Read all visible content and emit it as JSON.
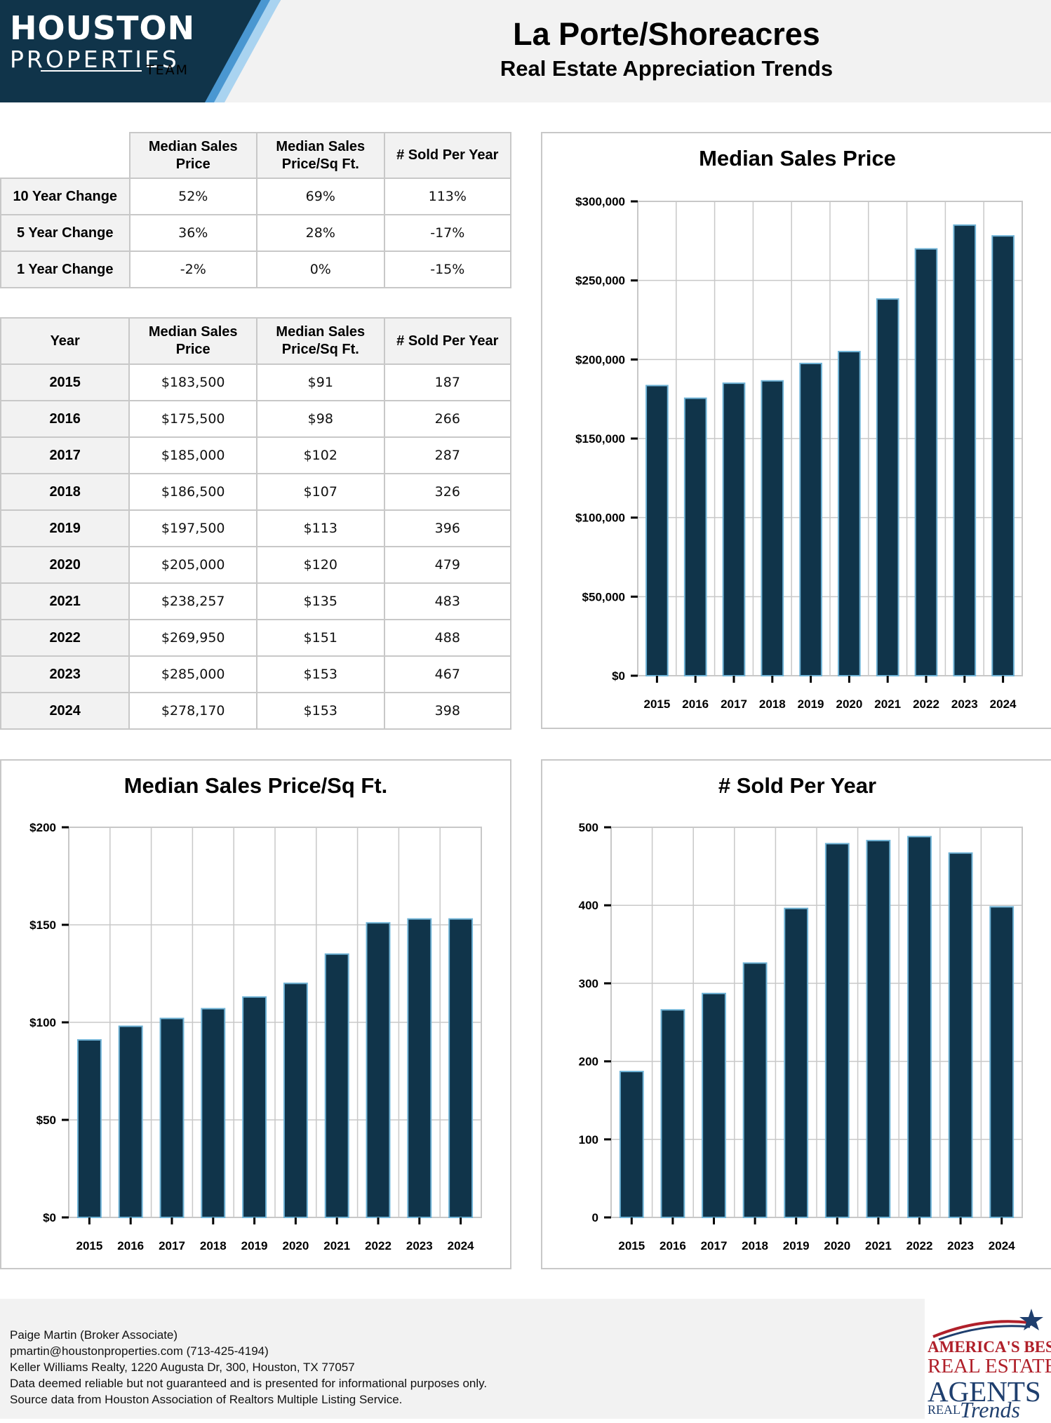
{
  "header": {
    "logo_line1": "HOUSTON",
    "logo_line2": "PROPERTIES",
    "logo_line3": "TEAM",
    "title": "La Porte/Shoreacres",
    "subtitle": "Real Estate Appreciation Trends"
  },
  "colors": {
    "bar_fill": "#10344a",
    "bar_stroke": "#6fb3d6",
    "logo_bg": "#10344a",
    "logo_accent": "#4a97d1"
  },
  "change_table": {
    "columns": [
      "Median Sales Price",
      "Median Sales Price/Sq Ft.",
      "# Sold Per Year"
    ],
    "rows": [
      {
        "label": "10 Year Change",
        "values": [
          "52%",
          "69%",
          "113%"
        ]
      },
      {
        "label": "5 Year Change",
        "values": [
          "36%",
          "28%",
          "-17%"
        ]
      },
      {
        "label": "1 Year Change",
        "values": [
          "-2%",
          "0%",
          "-15%"
        ]
      }
    ]
  },
  "year_table": {
    "columns": [
      "Year",
      "Median Sales Price",
      "Median Sales Price/Sq Ft.",
      "# Sold Per Year"
    ],
    "rows": [
      [
        "2015",
        "$183,500",
        "$91",
        "187"
      ],
      [
        "2016",
        "$175,500",
        "$98",
        "266"
      ],
      [
        "2017",
        "$185,000",
        "$102",
        "287"
      ],
      [
        "2018",
        "$186,500",
        "$107",
        "326"
      ],
      [
        "2019",
        "$197,500",
        "$113",
        "396"
      ],
      [
        "2020",
        "$205,000",
        "$120",
        "479"
      ],
      [
        "2021",
        "$238,257",
        "$135",
        "483"
      ],
      [
        "2022",
        "$269,950",
        "$151",
        "488"
      ],
      [
        "2023",
        "$285,000",
        "$153",
        "467"
      ],
      [
        "2024",
        "$278,170",
        "$153",
        "398"
      ]
    ]
  },
  "chart_data": [
    {
      "type": "bar",
      "title": "Median Sales Price",
      "categories": [
        "2015",
        "2016",
        "2017",
        "2018",
        "2019",
        "2020",
        "2021",
        "2022",
        "2023",
        "2024"
      ],
      "values": [
        183500,
        175500,
        185000,
        186500,
        197500,
        205000,
        238257,
        269950,
        285000,
        278170
      ],
      "ylim": [
        0,
        300000
      ],
      "yticks": [
        0,
        50000,
        100000,
        150000,
        200000,
        250000,
        300000
      ],
      "ytick_labels": [
        "$0",
        "$50,000",
        "$100,000",
        "$150,000",
        "$200,000",
        "$250,000",
        "$300,000"
      ],
      "grid": true
    },
    {
      "type": "bar",
      "title": "Median Sales Price/Sq Ft.",
      "categories": [
        "2015",
        "2016",
        "2017",
        "2018",
        "2019",
        "2020",
        "2021",
        "2022",
        "2023",
        "2024"
      ],
      "values": [
        91,
        98,
        102,
        107,
        113,
        120,
        135,
        151,
        153,
        153
      ],
      "ylim": [
        0,
        200
      ],
      "yticks": [
        0,
        50,
        100,
        150,
        200
      ],
      "ytick_labels": [
        "$0",
        "$50",
        "$100",
        "$150",
        "$200"
      ],
      "grid": true
    },
    {
      "type": "bar",
      "title": "# Sold Per Year",
      "categories": [
        "2015",
        "2016",
        "2017",
        "2018",
        "2019",
        "2020",
        "2021",
        "2022",
        "2023",
        "2024"
      ],
      "values": [
        187,
        266,
        287,
        326,
        396,
        479,
        483,
        488,
        467,
        398
      ],
      "ylim": [
        0,
        500
      ],
      "yticks": [
        0,
        100,
        200,
        300,
        400,
        500
      ],
      "ytick_labels": [
        "0",
        "100",
        "200",
        "300",
        "400",
        "500"
      ],
      "grid": true
    }
  ],
  "footer": {
    "lines": [
      "Paige Martin (Broker Associate)",
      "pmartin@houstonproperties.com (713-425-4194)",
      "Keller Williams Realty, 1220 Augusta Dr, 300, Houston, TX 77057",
      "Data deemed reliable but not guaranteed and is presented for informational purposes only.",
      "Source data from Houston Association of Realtors Multiple Listing Service."
    ],
    "badge_line1": "AMERICA'S BEST",
    "badge_line2": "REAL ESTATE",
    "badge_line3": "AGENTS",
    "badge_line4": "REAL",
    "badge_line5": "Trends"
  }
}
